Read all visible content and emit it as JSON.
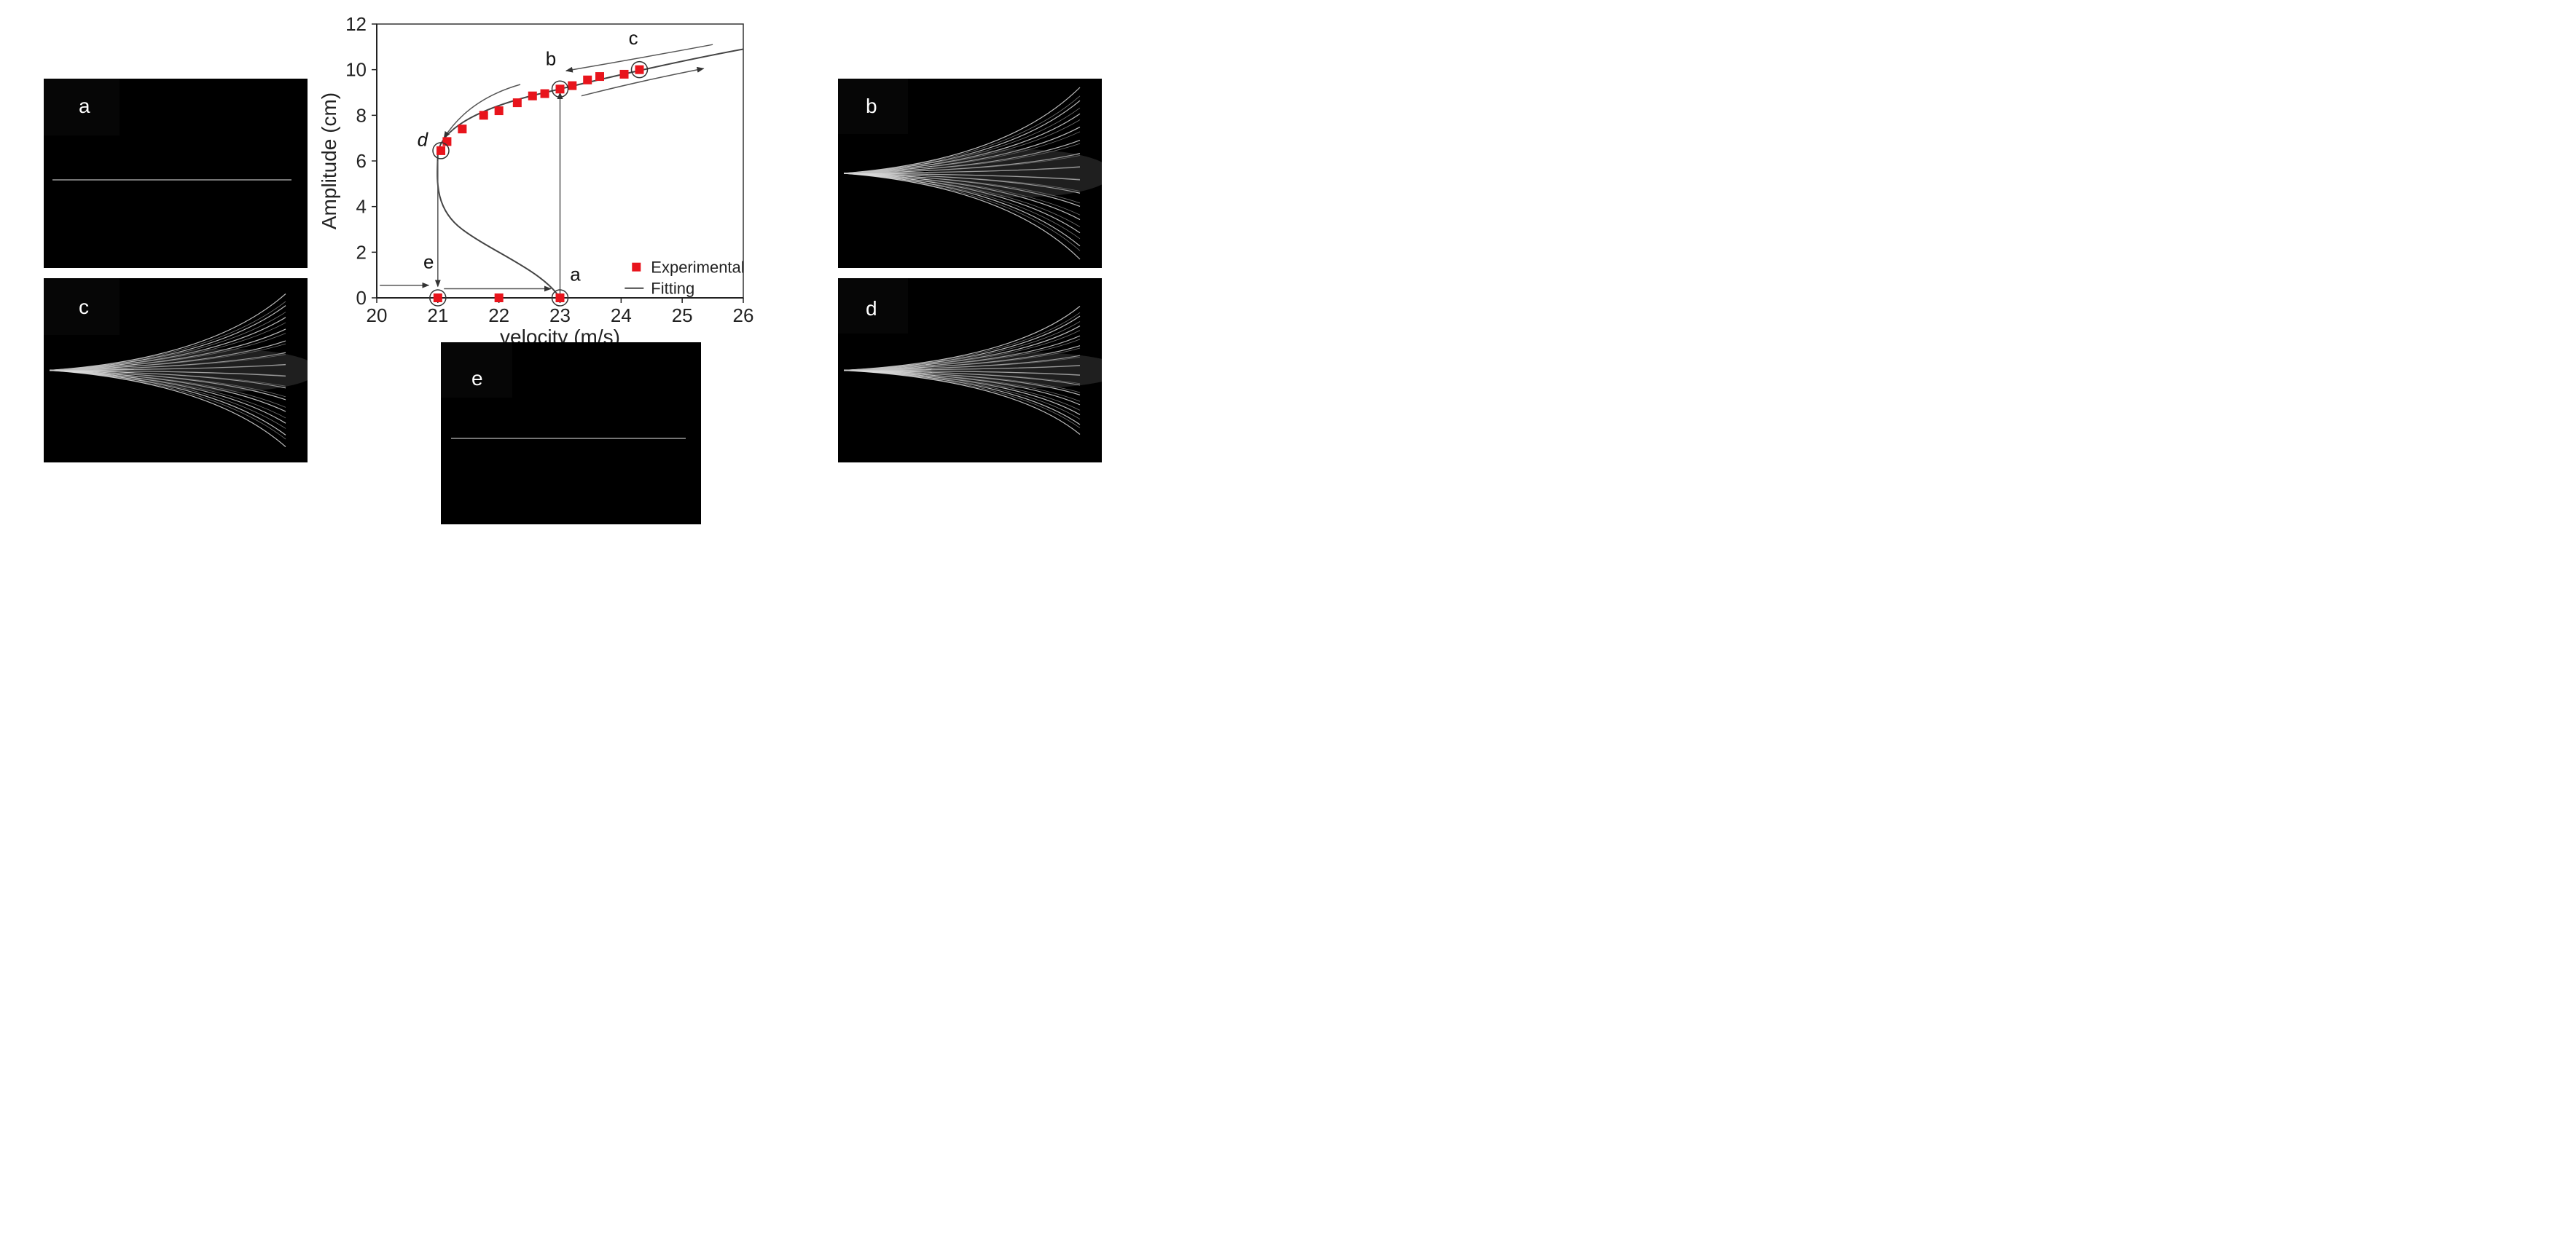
{
  "panels": [
    {
      "id": "a",
      "label": "a"
    },
    {
      "id": "b",
      "label": "b"
    },
    {
      "id": "c",
      "label": "c"
    },
    {
      "id": "d",
      "label": "d"
    },
    {
      "id": "e",
      "label": "e"
    }
  ],
  "chart_data": {
    "type": "scatter",
    "title": "",
    "xlabel": "velocity (m/s)",
    "ylabel": "Amplitude (cm)",
    "xlim": [
      20,
      26
    ],
    "ylim": [
      0,
      12
    ],
    "xticks": [
      20,
      21,
      22,
      23,
      24,
      25,
      26
    ],
    "yticks": [
      0,
      2,
      4,
      6,
      8,
      10,
      12
    ],
    "legend_position": "bottom-right",
    "colors": {
      "experimental": "#e8141c",
      "fitting": "#444444",
      "arrows": "#555555"
    },
    "series": [
      {
        "name": "Experimental",
        "marker": "square",
        "x": [
          21.0,
          22.0,
          23.0,
          21.05,
          21.15,
          21.4,
          21.75,
          22.0,
          22.3,
          22.55,
          22.75,
          23.0,
          23.2,
          23.45,
          23.65,
          24.05,
          24.3
        ],
        "y": [
          0,
          0,
          0,
          6.45,
          6.85,
          7.4,
          8.0,
          8.2,
          8.55,
          8.85,
          8.95,
          9.15,
          9.3,
          9.55,
          9.7,
          9.8,
          10.0
        ]
      },
      {
        "name": "Fitting",
        "type": "line",
        "x": [
          21.0,
          21.02,
          21.1,
          21.3,
          21.6,
          22.0,
          22.5,
          23.0,
          23.5,
          24.0,
          24.5,
          25.0,
          25.5,
          26.0
        ],
        "y": [
          6.4,
          5.5,
          4.8,
          4.0,
          3.3,
          2.6,
          1.7,
          0.0,
          9.3,
          9.8,
          10.1,
          10.4,
          10.6,
          10.9
        ]
      }
    ],
    "annotations": [
      {
        "text": "a",
        "x": 23.25,
        "y": 0.75
      },
      {
        "text": "b",
        "x": 22.85,
        "y": 10.2
      },
      {
        "text": "c",
        "x": 24.2,
        "y": 11.1
      },
      {
        "text": "d",
        "x": 20.75,
        "y": 6.65
      },
      {
        "text": "e",
        "x": 20.85,
        "y": 1.3
      }
    ]
  }
}
